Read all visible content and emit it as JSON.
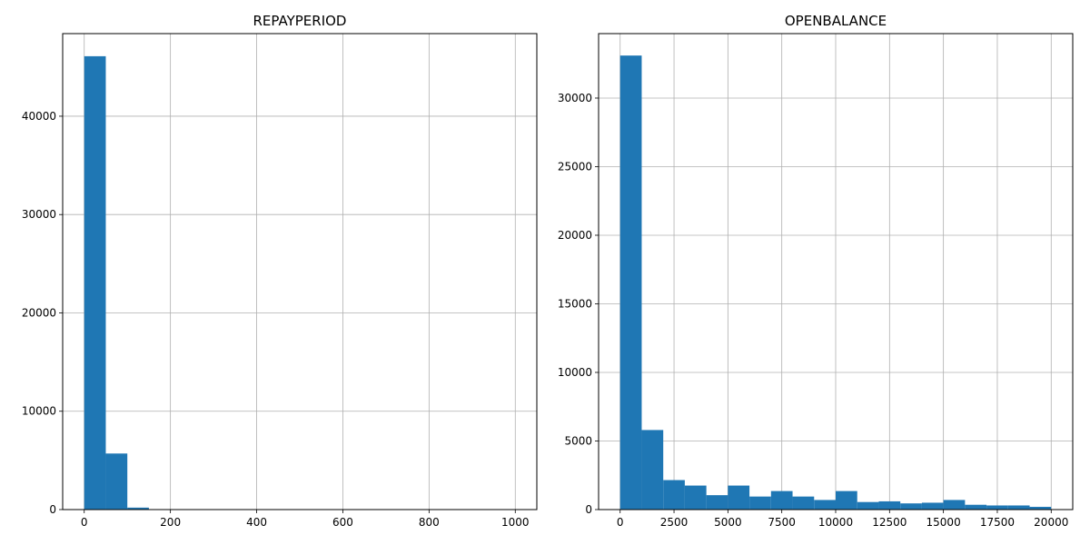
{
  "chart_data": [
    {
      "type": "bar",
      "title": "REPAYPERIOD",
      "xlabel": "",
      "ylabel": "",
      "bin_width": 50,
      "bins": [
        {
          "x0": 0,
          "x1": 50,
          "count": 46100
        },
        {
          "x0": 50,
          "x1": 100,
          "count": 5700
        },
        {
          "x0": 100,
          "x1": 150,
          "count": 200
        },
        {
          "x0": 150,
          "x1": 200,
          "count": 10
        },
        {
          "x0": 200,
          "x1": 250,
          "count": 5
        },
        {
          "x0": 250,
          "x1": 300,
          "count": 3
        },
        {
          "x0": 300,
          "x1": 350,
          "count": 2
        },
        {
          "x0": 350,
          "x1": 400,
          "count": 2
        },
        {
          "x0": 400,
          "x1": 450,
          "count": 1
        },
        {
          "x0": 450,
          "x1": 500,
          "count": 1
        },
        {
          "x0": 500,
          "x1": 550,
          "count": 1
        },
        {
          "x0": 550,
          "x1": 600,
          "count": 1
        },
        {
          "x0": 600,
          "x1": 650,
          "count": 1
        },
        {
          "x0": 650,
          "x1": 700,
          "count": 1
        },
        {
          "x0": 700,
          "x1": 750,
          "count": 1
        },
        {
          "x0": 750,
          "x1": 800,
          "count": 1
        },
        {
          "x0": 800,
          "x1": 850,
          "count": 1
        },
        {
          "x0": 850,
          "x1": 900,
          "count": 1
        },
        {
          "x0": 900,
          "x1": 950,
          "count": 1
        },
        {
          "x0": 950,
          "x1": 1000,
          "count": 1
        }
      ],
      "xlim": [
        -50,
        1050
      ],
      "ylim": [
        0,
        48400
      ],
      "xticks": [
        0,
        200,
        400,
        600,
        800,
        1000
      ],
      "xtick_labels": [
        "0",
        "200",
        "400",
        "600",
        "800",
        "1000"
      ],
      "yticks": [
        0,
        10000,
        20000,
        30000,
        40000
      ],
      "ytick_labels": [
        "0",
        "10000",
        "20000",
        "30000",
        "40000"
      ],
      "grid": true,
      "bar_color": "#1f77b4"
    },
    {
      "type": "bar",
      "title": "OPENBALANCE",
      "xlabel": "",
      "ylabel": "",
      "bin_width": 1000,
      "bins": [
        {
          "x0": 0,
          "x1": 1000,
          "count": 33100
        },
        {
          "x0": 1000,
          "x1": 2000,
          "count": 5800
        },
        {
          "x0": 2000,
          "x1": 3000,
          "count": 2150
        },
        {
          "x0": 3000,
          "x1": 4000,
          "count": 1750
        },
        {
          "x0": 4000,
          "x1": 5000,
          "count": 1050
        },
        {
          "x0": 5000,
          "x1": 6000,
          "count": 1750
        },
        {
          "x0": 6000,
          "x1": 7000,
          "count": 950
        },
        {
          "x0": 7000,
          "x1": 8000,
          "count": 1350
        },
        {
          "x0": 8000,
          "x1": 9000,
          "count": 950
        },
        {
          "x0": 9000,
          "x1": 10000,
          "count": 700
        },
        {
          "x0": 10000,
          "x1": 11000,
          "count": 1350
        },
        {
          "x0": 11000,
          "x1": 12000,
          "count": 550
        },
        {
          "x0": 12000,
          "x1": 13000,
          "count": 600
        },
        {
          "x0": 13000,
          "x1": 14000,
          "count": 450
        },
        {
          "x0": 14000,
          "x1": 15000,
          "count": 500
        },
        {
          "x0": 15000,
          "x1": 16000,
          "count": 700
        },
        {
          "x0": 16000,
          "x1": 17000,
          "count": 350
        },
        {
          "x0": 17000,
          "x1": 18000,
          "count": 300
        },
        {
          "x0": 18000,
          "x1": 19000,
          "count": 300
        },
        {
          "x0": 19000,
          "x1": 20000,
          "count": 200
        }
      ],
      "xlim": [
        -1000,
        21000
      ],
      "ylim": [
        0,
        34700
      ],
      "xticks": [
        0,
        2500,
        5000,
        7500,
        10000,
        12500,
        15000,
        17500,
        20000
      ],
      "xtick_labels": [
        "0",
        "2500",
        "5000",
        "7500",
        "10000",
        "12500",
        "15000",
        "17500",
        "20000"
      ],
      "yticks": [
        0,
        5000,
        10000,
        15000,
        20000,
        25000,
        30000
      ],
      "ytick_labels": [
        "0",
        "5000",
        "10000",
        "15000",
        "20000",
        "25000",
        "30000"
      ],
      "grid": true,
      "bar_color": "#1f77b4"
    }
  ]
}
